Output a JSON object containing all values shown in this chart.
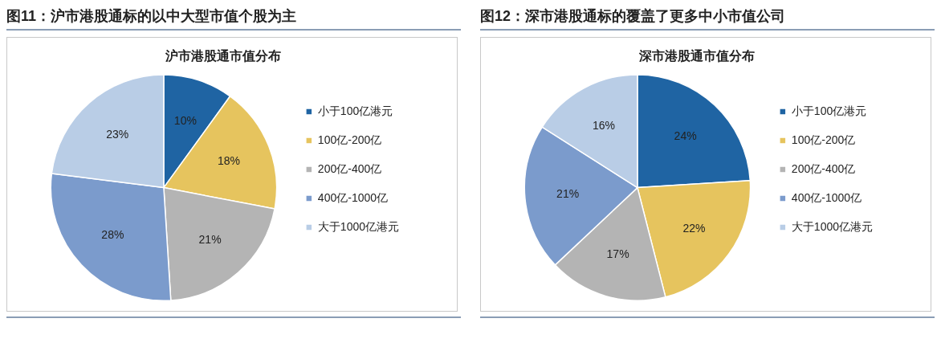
{
  "chart_data": [
    {
      "type": "pie",
      "title": "图11：沪市港股通标的以中大型市值个股为主",
      "subtitle": "沪市港股通市值分布",
      "categories": [
        "小于100亿港元",
        "100亿-200亿",
        "200亿-400亿",
        "400亿-1000亿",
        "大于1000亿港元"
      ],
      "values": [
        10,
        18,
        21,
        28,
        23
      ],
      "value_labels": [
        "10%",
        "18%",
        "21%",
        "28%",
        "23%"
      ],
      "colors": [
        "#1f64a3",
        "#e6c45e",
        "#b4b4b4",
        "#7b9bcc",
        "#b9cde6"
      ],
      "legend": "right"
    },
    {
      "type": "pie",
      "title": "图12：深市港股通标的覆盖了更多中小市值公司",
      "subtitle": "深市港股通市值分布",
      "categories": [
        "小于100亿港元",
        "100亿-200亿",
        "200亿-400亿",
        "400亿-1000亿",
        "大于1000亿港元"
      ],
      "values": [
        24,
        22,
        17,
        21,
        16
      ],
      "value_labels": [
        "24%",
        "22%",
        "17%",
        "21%",
        "16%"
      ],
      "colors": [
        "#1f64a3",
        "#e6c45e",
        "#b4b4b4",
        "#7b9bcc",
        "#b9cde6"
      ],
      "legend": "right"
    }
  ]
}
